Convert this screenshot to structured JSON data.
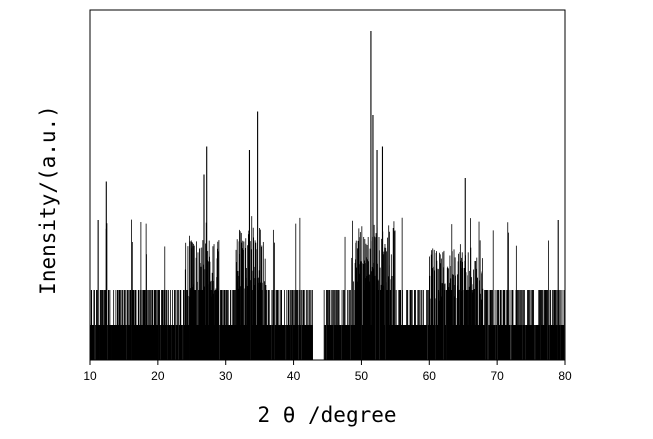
{
  "chart_data": {
    "type": "bar",
    "xlabel": "2 θ /degree",
    "ylabel": "Inensity/(a.u.)",
    "xlim": [
      10,
      80
    ],
    "ylim": [
      0,
      10
    ],
    "xticks": [
      10,
      20,
      30,
      40,
      50,
      60,
      70,
      80
    ],
    "grid": false,
    "legend": "none",
    "peaks": [
      {
        "x": 12.4,
        "y": 5.1
      },
      {
        "x": 11.2,
        "y": 4.0
      },
      {
        "x": 26.8,
        "y": 5.3
      },
      {
        "x": 27.2,
        "y": 6.1
      },
      {
        "x": 33.5,
        "y": 6.0
      },
      {
        "x": 34.7,
        "y": 7.1
      },
      {
        "x": 51.4,
        "y": 9.4
      },
      {
        "x": 51.7,
        "y": 7.0
      },
      {
        "x": 52.3,
        "y": 6.0
      },
      {
        "x": 53.1,
        "y": 6.1
      },
      {
        "x": 65.3,
        "y": 5.2
      },
      {
        "x": 79.0,
        "y": 4.0
      }
    ],
    "regions": [
      {
        "from": 24.0,
        "to": 29.0,
        "level": 3.0
      },
      {
        "from": 31.5,
        "to": 36.0,
        "level": 3.3
      },
      {
        "from": 48.5,
        "to": 55.0,
        "level": 3.5
      },
      {
        "from": 60.0,
        "to": 68.0,
        "level": 2.8
      }
    ],
    "baseline_levels": [
      1.0,
      2.0
    ],
    "gap": [
      42.8,
      44.5
    ],
    "color": "#000000"
  }
}
